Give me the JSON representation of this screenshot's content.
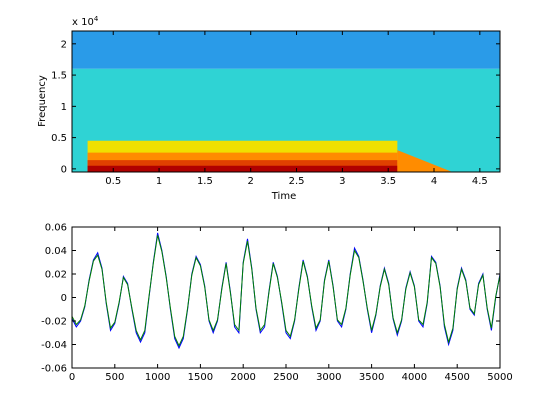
{
  "chart_data": [
    {
      "type": "heatmap",
      "xlabel": "Time",
      "ylabel": "Frequency",
      "y_exponent_base": "x 10",
      "y_exponent_power": "4",
      "xlim": [
        0.05,
        4.72
      ],
      "ylim": [
        -500,
        22050
      ],
      "x_ticks": [
        {
          "value": 0.5,
          "label": "0.5"
        },
        {
          "value": 1.0,
          "label": "1"
        },
        {
          "value": 1.5,
          "label": "1.5"
        },
        {
          "value": 2.0,
          "label": "2"
        },
        {
          "value": 2.5,
          "label": "2.5"
        },
        {
          "value": 3.0,
          "label": "3"
        },
        {
          "value": 3.5,
          "label": "3.5"
        },
        {
          "value": 4.0,
          "label": "4"
        },
        {
          "value": 4.5,
          "label": "4.5"
        }
      ],
      "y_ticks": [
        {
          "value": 0,
          "label": "0"
        },
        {
          "value": 5000,
          "label": "0.5"
        },
        {
          "value": 10000,
          "label": "1"
        },
        {
          "value": 15000,
          "label": "1.5"
        },
        {
          "value": 20000,
          "label": "2"
        }
      ],
      "regions": [
        {
          "t0": 0.05,
          "t1": 4.72,
          "f0": 16000,
          "f1": 22050,
          "color": "#2a9be8"
        },
        {
          "t0": 0.05,
          "t1": 4.72,
          "f0": -500,
          "f1": 16000,
          "color": "#2fd3d4"
        },
        {
          "t0": 0.22,
          "t1": 3.6,
          "f0": -500,
          "f1": 4500,
          "color": "#f0e000"
        },
        {
          "t0": 0.22,
          "t1": 3.6,
          "f0": -500,
          "f1": 2600,
          "color": "#ff8c00"
        },
        {
          "t0": 0.22,
          "t1": 3.6,
          "f0": -500,
          "f1": 1400,
          "color": "#e04000"
        },
        {
          "t0": 0.22,
          "t1": 3.6,
          "f0": -500,
          "f1": 500,
          "color": "#b00000"
        }
      ],
      "taper": {
        "t0": 3.6,
        "t1": 4.2,
        "f_start": 3000,
        "color": "#ff8c00"
      },
      "colors": {
        "high_band": "#2a9be8",
        "mid_band": "#2fd3d4",
        "warm": "#f0e000",
        "hot": "#e04000"
      }
    },
    {
      "type": "line",
      "xlim": [
        0,
        5000
      ],
      "ylim": [
        -0.06,
        0.06
      ],
      "x_ticks": [
        0,
        500,
        1000,
        1500,
        2000,
        2500,
        3000,
        3500,
        4000,
        4500,
        5000
      ],
      "y_ticks": [
        -0.06,
        -0.04,
        -0.02,
        0,
        0.02,
        0.04,
        0.06
      ],
      "x_tick_labels": [
        "0",
        "500",
        "1000",
        "1500",
        "2000",
        "2500",
        "3000",
        "3500",
        "4000",
        "4500",
        "5000"
      ],
      "y_tick_labels": [
        "-0.06",
        "-0.04",
        "-0.02",
        "0",
        "0.02",
        "0.04",
        "0.06"
      ],
      "series": [
        {
          "color": "#0000ff",
          "x": [
            0,
            50,
            100,
            150,
            200,
            250,
            300,
            350,
            400,
            450,
            500,
            550,
            600,
            650,
            700,
            750,
            800,
            850,
            900,
            950,
            1000,
            1050,
            1100,
            1150,
            1200,
            1250,
            1300,
            1350,
            1400,
            1450,
            1500,
            1550,
            1600,
            1650,
            1700,
            1750,
            1800,
            1850,
            1900,
            1950,
            2000,
            2050,
            2100,
            2150,
            2200,
            2250,
            2300,
            2350,
            2400,
            2450,
            2500,
            2550,
            2600,
            2650,
            2700,
            2750,
            2800,
            2850,
            2900,
            2950,
            3000,
            3050,
            3100,
            3150,
            3200,
            3250,
            3300,
            3350,
            3400,
            3450,
            3500,
            3550,
            3600,
            3650,
            3700,
            3750,
            3800,
            3850,
            3900,
            3950,
            4000,
            4050,
            4100,
            4150,
            4200,
            4250,
            4300,
            4350,
            4400,
            4450,
            4500,
            4550,
            4600,
            4650,
            4700,
            4750,
            4800,
            4850,
            4900,
            4950,
            5000
          ],
          "values": [
            -0.018,
            -0.025,
            -0.02,
            -0.008,
            0.015,
            0.032,
            0.038,
            0.025,
            -0.005,
            -0.028,
            -0.022,
            -0.005,
            0.018,
            0.012,
            -0.01,
            -0.03,
            -0.038,
            -0.03,
            0.0,
            0.03,
            0.055,
            0.04,
            0.018,
            -0.01,
            -0.035,
            -0.043,
            -0.035,
            -0.01,
            0.02,
            0.035,
            0.028,
            0.01,
            -0.02,
            -0.03,
            -0.02,
            0.008,
            0.03,
            0.005,
            -0.025,
            -0.03,
            0.03,
            0.05,
            0.025,
            -0.01,
            -0.03,
            -0.025,
            0.005,
            0.03,
            0.018,
            -0.005,
            -0.03,
            -0.035,
            -0.02,
            0.008,
            0.032,
            0.018,
            -0.008,
            -0.028,
            -0.02,
            0.015,
            0.032,
            0.01,
            -0.02,
            -0.025,
            -0.01,
            0.02,
            0.042,
            0.035,
            0.015,
            -0.01,
            -0.03,
            -0.015,
            0.01,
            0.025,
            0.012,
            -0.018,
            -0.032,
            -0.02,
            0.008,
            0.022,
            0.01,
            -0.02,
            -0.025,
            -0.005,
            0.035,
            0.03,
            0.01,
            -0.025,
            -0.04,
            -0.028,
            0.008,
            0.025,
            0.015,
            -0.01,
            -0.015,
            0.012,
            0.02,
            -0.01,
            -0.028,
            0.0,
            0.02
          ]
        },
        {
          "color": "#008000",
          "x": [
            0,
            50,
            100,
            150,
            200,
            250,
            300,
            350,
            400,
            450,
            500,
            550,
            600,
            650,
            700,
            750,
            800,
            850,
            900,
            950,
            1000,
            1050,
            1100,
            1150,
            1200,
            1250,
            1300,
            1350,
            1400,
            1450,
            1500,
            1550,
            1600,
            1650,
            1700,
            1750,
            1800,
            1850,
            1900,
            1950,
            2000,
            2050,
            2100,
            2150,
            2200,
            2250,
            2300,
            2350,
            2400,
            2450,
            2500,
            2550,
            2600,
            2650,
            2700,
            2750,
            2800,
            2850,
            2900,
            2950,
            3000,
            3050,
            3100,
            3150,
            3200,
            3250,
            3300,
            3350,
            3400,
            3450,
            3500,
            3550,
            3600,
            3650,
            3700,
            3750,
            3800,
            3850,
            3900,
            3950,
            4000,
            4050,
            4100,
            4150,
            4200,
            4250,
            4300,
            4350,
            4400,
            4450,
            4500,
            4550,
            4600,
            4650,
            4700,
            4750,
            4800,
            4850,
            4900,
            4950,
            5000
          ],
          "values": [
            -0.016,
            -0.023,
            -0.019,
            -0.007,
            0.014,
            0.031,
            0.036,
            0.024,
            -0.004,
            -0.026,
            -0.021,
            -0.004,
            0.017,
            0.011,
            -0.009,
            -0.028,
            -0.036,
            -0.028,
            0.001,
            0.029,
            0.053,
            0.039,
            0.017,
            -0.009,
            -0.033,
            -0.041,
            -0.033,
            -0.009,
            0.019,
            0.034,
            0.027,
            0.009,
            -0.019,
            -0.028,
            -0.019,
            0.007,
            0.029,
            0.004,
            -0.023,
            -0.028,
            0.029,
            0.048,
            0.024,
            -0.009,
            -0.028,
            -0.023,
            0.004,
            0.029,
            0.017,
            -0.004,
            -0.028,
            -0.033,
            -0.019,
            0.007,
            0.031,
            0.017,
            -0.007,
            -0.026,
            -0.019,
            0.014,
            0.031,
            0.009,
            -0.019,
            -0.023,
            -0.009,
            0.019,
            0.04,
            0.034,
            0.014,
            -0.009,
            -0.028,
            -0.014,
            0.009,
            0.024,
            0.011,
            -0.017,
            -0.03,
            -0.019,
            0.007,
            0.021,
            0.009,
            -0.019,
            -0.023,
            -0.004,
            0.034,
            0.029,
            0.009,
            -0.023,
            -0.038,
            -0.026,
            0.007,
            0.024,
            0.014,
            -0.009,
            -0.014,
            0.011,
            0.019,
            -0.009,
            -0.026,
            0.001,
            0.019
          ]
        }
      ]
    }
  ]
}
